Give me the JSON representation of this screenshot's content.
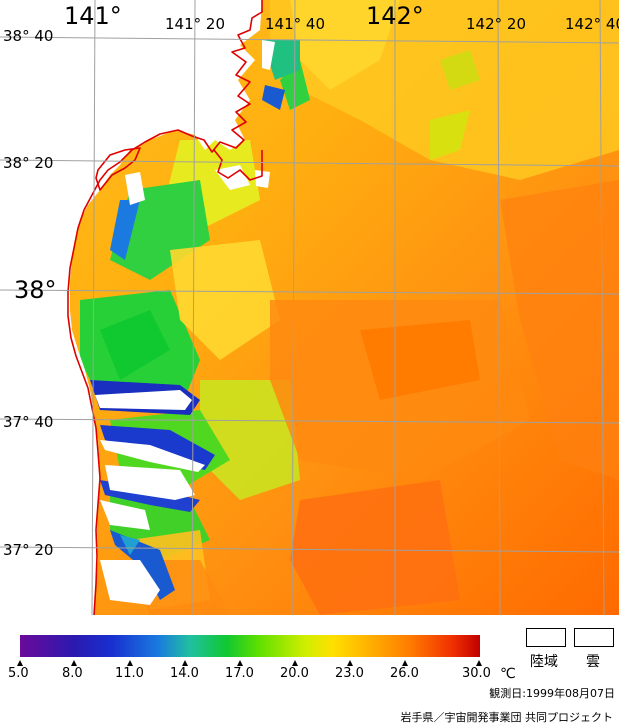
{
  "longitude_labels": [
    "141°",
    "141° 20",
    "141° 40",
    "142°",
    "142° 20",
    "142° 40"
  ],
  "latitude_labels": [
    "38° 40",
    "38° 20",
    "38°",
    "37° 40",
    "37° 20"
  ],
  "colorbar": {
    "ticks": [
      "5.0",
      "8.0",
      "11.0",
      "14.0",
      "17.0",
      "20.0",
      "23.0",
      "26.0",
      "30.0"
    ],
    "unit": "℃"
  },
  "legend": {
    "land_label": "陸域",
    "cloud_label": "雲",
    "land_color": "#ffffff",
    "cloud_color": "#ffffff"
  },
  "observation_date": "観測日:1999年08月07日",
  "credit": "岩手県／宇宙開発事業団 共同プロジェクト",
  "colors": {
    "coastline": "#e00000",
    "grid": "#a0a0a0"
  }
}
